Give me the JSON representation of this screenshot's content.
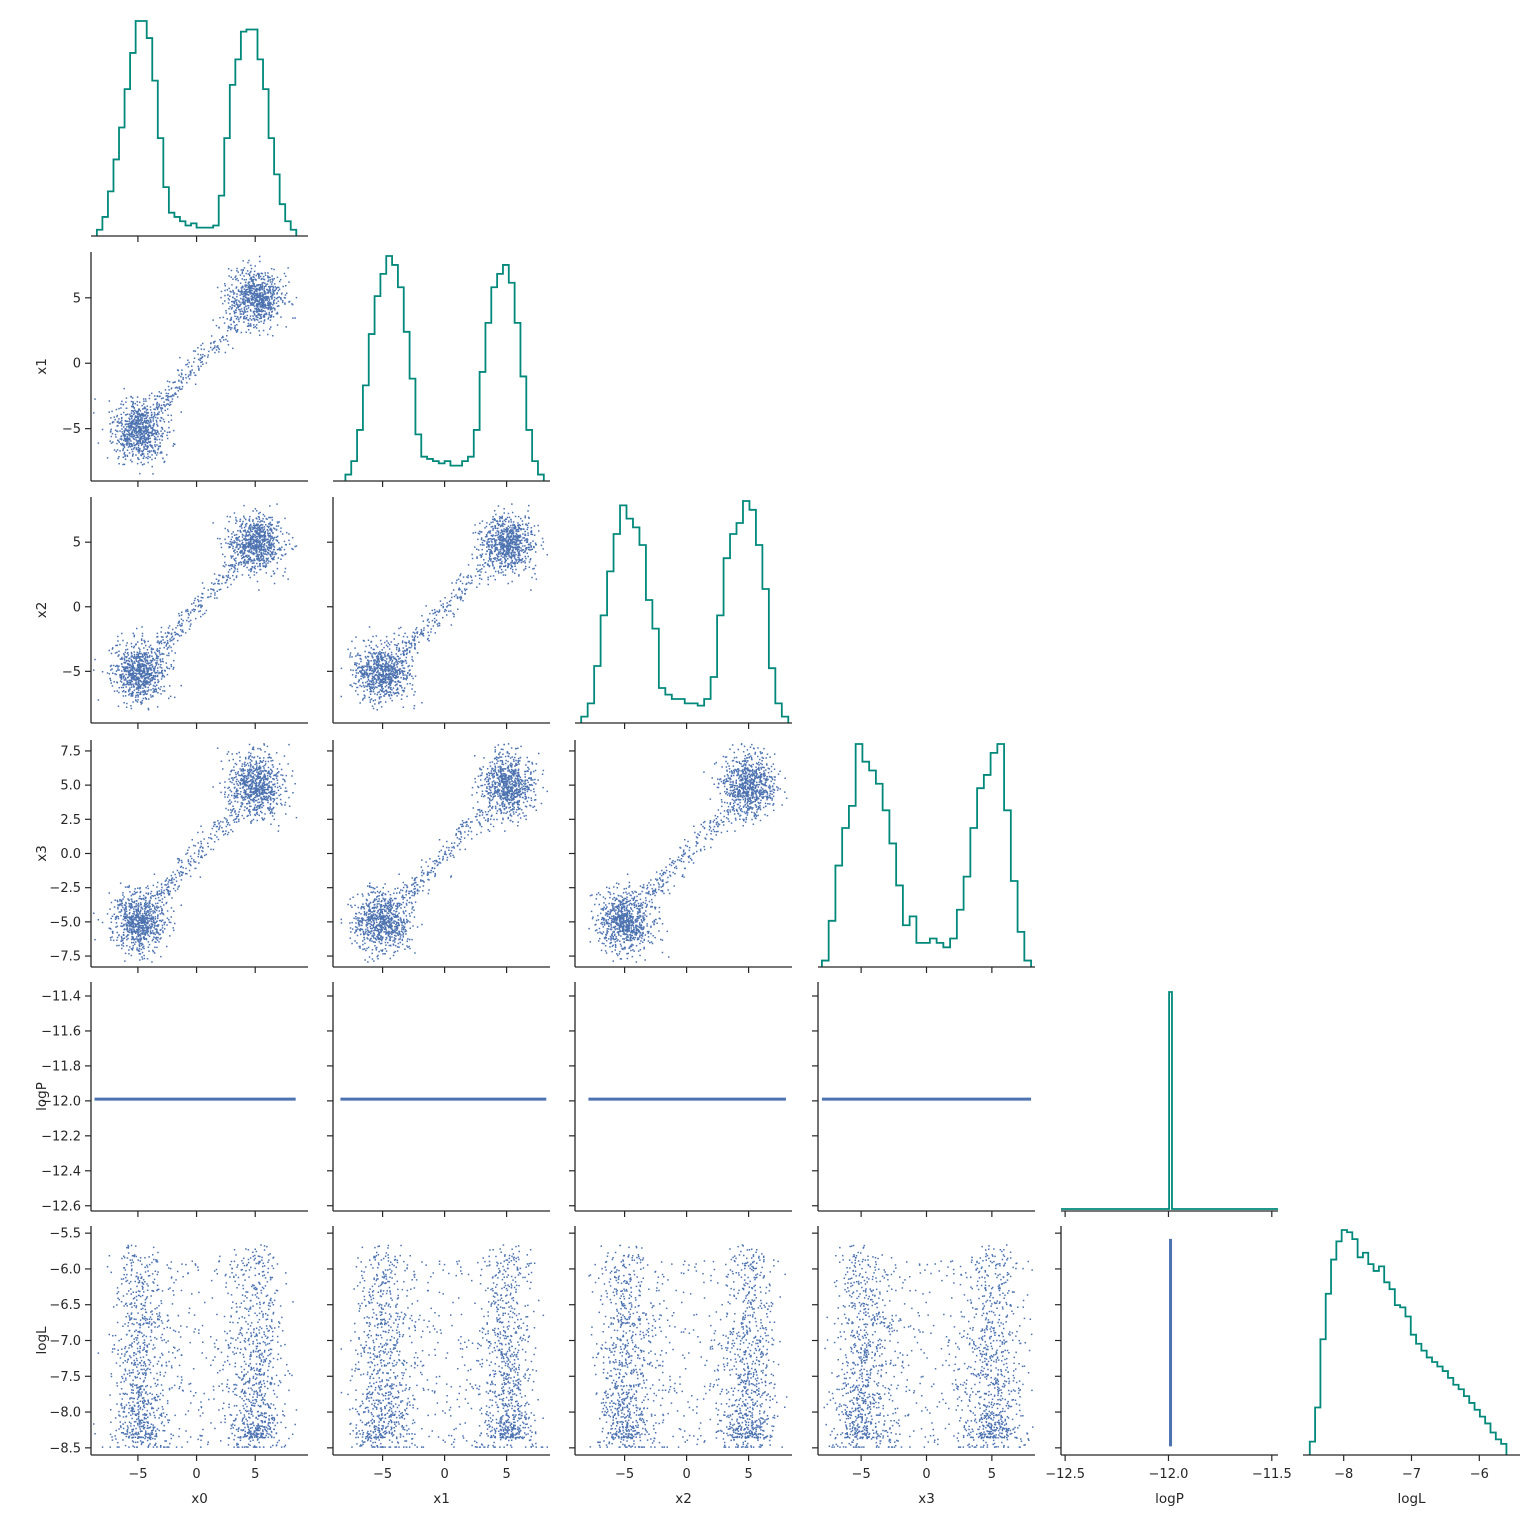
{
  "chart_data": {
    "type": "scatter",
    "subtype": "corner-pair-plot",
    "variables": [
      "x0",
      "x1",
      "x2",
      "x3",
      "logP",
      "logL"
    ],
    "axes": {
      "x0": {
        "lim": [
          -9,
          9.5
        ],
        "ticks": [
          -5,
          0,
          5
        ],
        "tick_labels": [
          "−5",
          "0",
          "5"
        ]
      },
      "x1": {
        "lim": [
          -9,
          8.5
        ],
        "ticks": [
          -5,
          0,
          5
        ],
        "tick_labels": [
          "−5",
          "0",
          "5"
        ]
      },
      "x2": {
        "lim": [
          -9,
          8.5
        ],
        "ticks": [
          -5,
          0,
          5
        ],
        "tick_labels": [
          "−5",
          "0",
          "5"
        ]
      },
      "x3": {
        "lim": [
          -8.3,
          8.3
        ],
        "ticks": [
          -7.5,
          -5,
          -2.5,
          0,
          2.5,
          5,
          7.5
        ],
        "tick_labels": [
          "−7.5",
          "−5.0",
          "−2.5",
          "0.0",
          "2.5",
          "5.0",
          "7.5"
        ],
        "x_ticks": [
          -5,
          0,
          5
        ],
        "x_tick_labels": [
          "−5",
          "0",
          "5"
        ]
      },
      "logP": {
        "lim": [
          -12.63,
          -11.32
        ],
        "ticks": [
          -12.6,
          -12.4,
          -12.2,
          -12.0,
          -11.8,
          -11.6,
          -11.4
        ],
        "tick_labels": [
          "−12.6",
          "−12.4",
          "−12.2",
          "−12.0",
          "−11.8",
          "−11.6",
          "−11.4"
        ],
        "x_lim": [
          -12.52,
          -11.47
        ],
        "x_ticks": [
          -12.5,
          -12.0,
          -11.5
        ],
        "x_tick_labels": [
          "−12.5",
          "−12.0",
          "−11.5"
        ]
      },
      "logL": {
        "lim": [
          -8.6,
          -5.4
        ],
        "ticks": [
          -8.5,
          -8.0,
          -7.5,
          -7.0,
          -6.5,
          -6.0,
          -5.5
        ],
        "tick_labels": [
          "−8.5",
          "−8.0",
          "−7.5",
          "−7.0",
          "−6.5",
          "−6.0",
          "−5.5"
        ],
        "x_lim": [
          -8.6,
          -5.4
        ],
        "x_ticks": [
          -8,
          -7,
          -6
        ],
        "x_tick_labels": [
          "−8",
          "−7",
          "−6"
        ]
      }
    },
    "histograms": {
      "x0": {
        "range": [
          -8.5,
          8.5
        ],
        "heights": [
          2,
          8,
          20,
          35,
          50,
          68,
          85,
          100,
          100,
          92,
          72,
          45,
          22,
          10,
          8,
          6,
          4,
          5,
          3,
          3,
          3,
          4,
          18,
          45,
          70,
          82,
          95,
          96,
          96,
          82,
          68,
          45,
          28,
          14,
          6,
          2
        ]
      },
      "x1": {
        "range": [
          -8.0,
          8.0
        ],
        "heights": [
          2,
          8,
          22,
          42,
          65,
          82,
          92,
          100,
          96,
          86,
          66,
          45,
          20,
          10,
          9,
          8,
          7,
          8,
          6,
          6,
          8,
          10,
          22,
          48,
          70,
          86,
          92,
          96,
          88,
          70,
          46,
          22,
          8,
          2
        ]
      },
      "x2": {
        "range": [
          -8.5,
          8.2
        ],
        "heights": [
          2,
          8,
          25,
          48,
          68,
          85,
          98,
          92,
          88,
          80,
          55,
          42,
          15,
          12,
          10,
          10,
          8,
          8,
          7,
          10,
          20,
          48,
          74,
          85,
          90,
          100,
          96,
          80,
          60,
          24,
          8,
          2
        ]
      },
      "x3": {
        "range": [
          -8.0,
          8.0
        ],
        "heights": [
          2,
          20,
          45,
          62,
          72,
          100,
          92,
          88,
          82,
          70,
          55,
          36,
          18,
          22,
          10,
          10,
          12,
          10,
          8,
          12,
          25,
          40,
          62,
          80,
          86,
          96,
          100,
          70,
          38,
          15,
          2
        ]
      },
      "logP": {
        "range": [
          -12.52,
          -11.47
        ],
        "spike_at": -11.99,
        "spike_width": 0.014
      },
      "logL": {
        "range": [
          -8.5,
          -5.6
        ],
        "heights": [
          5,
          20,
          50,
          70,
          85,
          93,
          98,
          97,
          94,
          86,
          88,
          83,
          80,
          82,
          75,
          72,
          65,
          64,
          60,
          52,
          48,
          45,
          42,
          40,
          38,
          36,
          33,
          30,
          28,
          25,
          22,
          19,
          16,
          13,
          9,
          6,
          4
        ]
      }
    },
    "scatter_color": "#4c72b0",
    "hist_color": "#00897b",
    "point_count_per_panel": 6000,
    "grid": false,
    "legend": "none"
  }
}
